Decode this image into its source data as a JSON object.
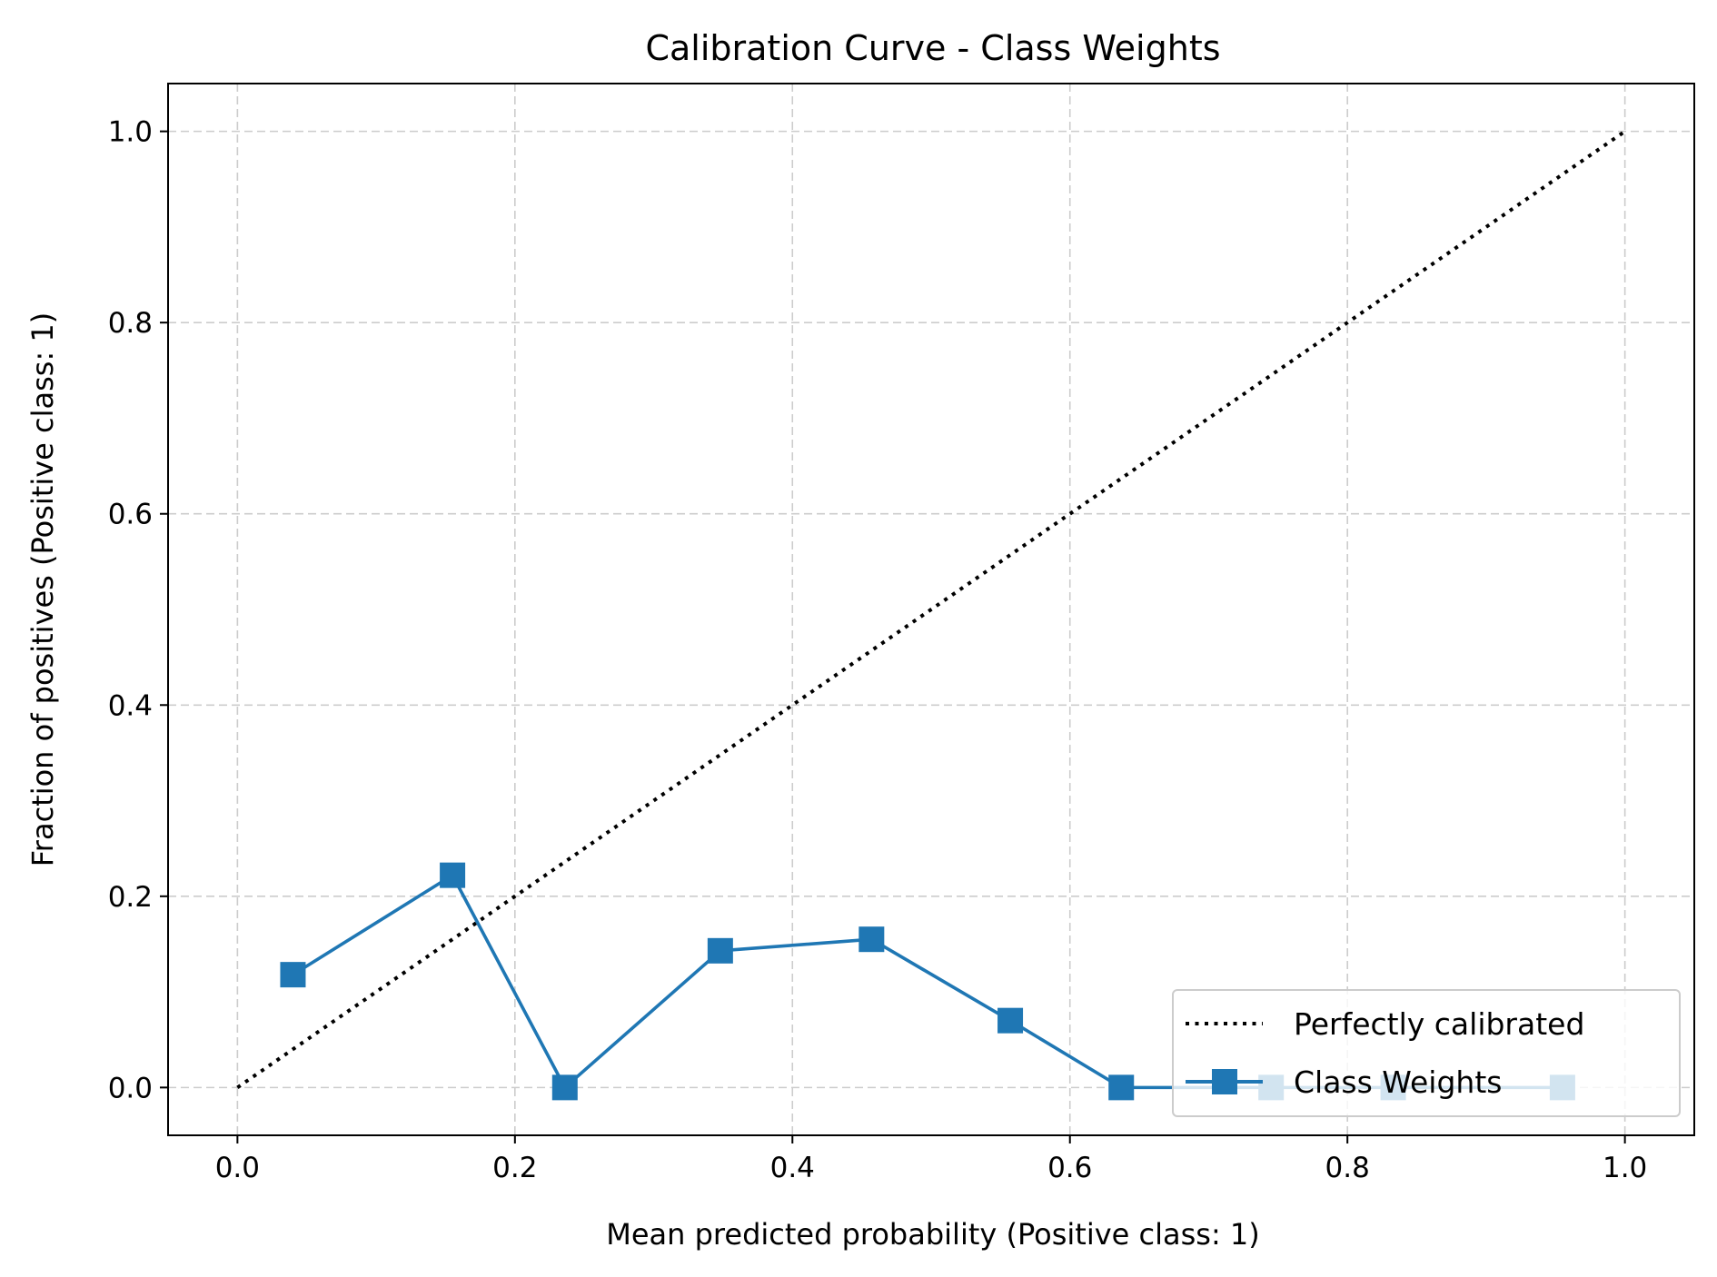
{
  "chart_data": {
    "type": "line",
    "title": "Calibration Curve - Class Weights",
    "xlabel": "Mean predicted probability (Positive class: 1)",
    "ylabel": "Fraction of positives (Positive class: 1)",
    "xlim": [
      -0.05,
      1.05
    ],
    "ylim": [
      -0.05,
      1.05
    ],
    "xticks": [
      "0.0",
      "0.2",
      "0.4",
      "0.6",
      "0.8",
      "1.0"
    ],
    "yticks": [
      "0.0",
      "0.2",
      "0.4",
      "0.6",
      "0.8",
      "1.0"
    ],
    "grid": true,
    "legend_position": "lower-right",
    "series": [
      {
        "name": "Perfectly calibrated",
        "style": "dotted",
        "color": "#000000",
        "x": [
          0.0,
          1.0
        ],
        "y": [
          0.0,
          1.0
        ]
      },
      {
        "name": "Class Weights",
        "style": "solid",
        "marker": "square",
        "color": "#1f77b4",
        "x": [
          0.04,
          0.155,
          0.236,
          0.348,
          0.457,
          0.557,
          0.637,
          0.745,
          0.833,
          0.955
        ],
        "y": [
          0.118,
          0.222,
          0.0,
          0.143,
          0.155,
          0.07,
          0.0,
          0.0,
          0.0,
          0.0
        ]
      }
    ]
  }
}
